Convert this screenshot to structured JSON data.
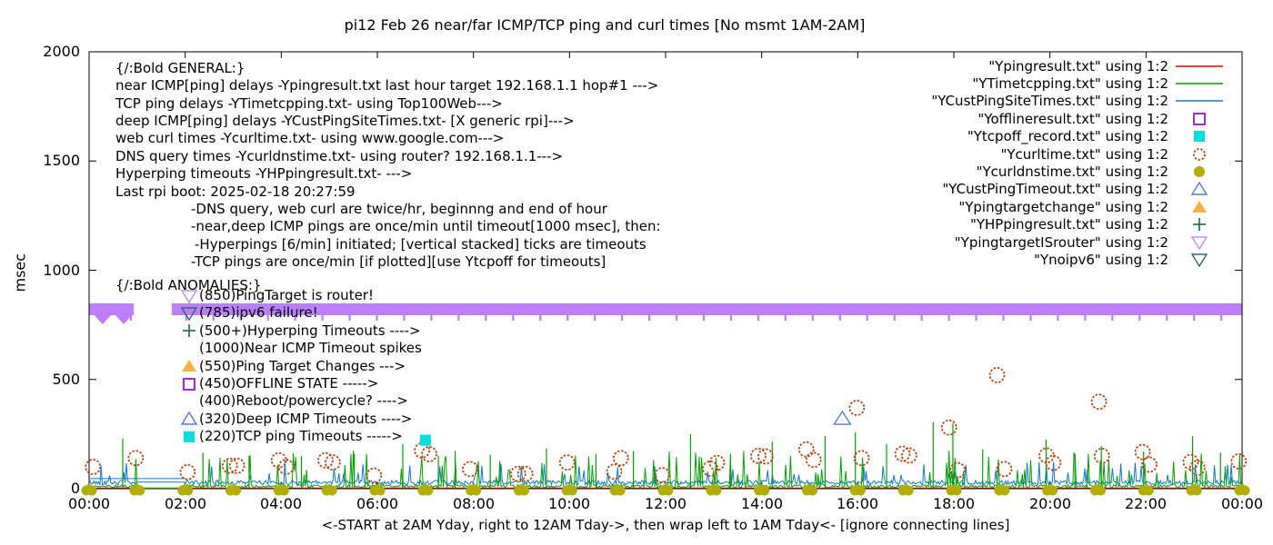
{
  "title": "pi12 Feb 26  near/far ICMP/TCP ping and curl times [No msmt 1AM-2AM]",
  "y_axis": {
    "label": "msec",
    "ticks": [
      0,
      500,
      1000,
      1500,
      2000
    ],
    "max": 2000
  },
  "x_axis": {
    "ticks": [
      {
        "label": "00:00",
        "hour": 0
      },
      {
        "label": "02:00",
        "hour": 2
      },
      {
        "label": "04:00",
        "hour": 4
      },
      {
        "label": "06:00",
        "hour": 6
      },
      {
        "label": "08:00",
        "hour": 8
      },
      {
        "label": "10:00",
        "hour": 10
      },
      {
        "label": "12:00",
        "hour": 12
      },
      {
        "label": "14:00",
        "hour": 14
      },
      {
        "label": "16:00",
        "hour": 16
      },
      {
        "label": "18:00",
        "hour": 18
      },
      {
        "label": "20:00",
        "hour": 20
      },
      {
        "label": "22:00",
        "hour": 22
      },
      {
        "label": "00:00",
        "hour": 24
      }
    ],
    "label": "<-START at 2AM Yday, right to 12AM Tday->, then wrap left to 1AM Tday<- [ignore connecting lines]"
  },
  "legend": [
    {
      "label": "\"Ypingresult.txt\" using 1:2",
      "marker": "line",
      "color": "#e60000"
    },
    {
      "label": "\"YTimetcpping.txt\" using 1:2",
      "marker": "line",
      "color": "#00a400"
    },
    {
      "label": "\"YCustPingSiteTimes.txt\" using 1:2",
      "marker": "line",
      "color": "#0b7ad1"
    },
    {
      "label": "\"Yofflineresult.txt\" using 1:2",
      "marker": "square-open",
      "color": "#a428e8"
    },
    {
      "label": "\"Ytcpoff_record.txt\" using 1:2",
      "marker": "square-filled",
      "color": "#00e0e0"
    },
    {
      "label": "\"Ycurltime.txt\" using 1:2",
      "marker": "circle-open",
      "color": "#b8460e"
    },
    {
      "label": "\"Ycurldnstime.txt\" using 1:2",
      "marker": "dot-filled",
      "color": "#b3ad00"
    },
    {
      "label": "\"YCustPingTimeout.txt\" using 1:2",
      "marker": "tri-up-open",
      "color": "#527fd0"
    },
    {
      "label": "\"Ypingtargetchange\" using 1:2",
      "marker": "tri-up-filled",
      "color": "#f7b239"
    },
    {
      "label": "\"YHPpingresult.txt\" using 1:2",
      "marker": "plus",
      "color": "#166b40"
    },
    {
      "label": "\"YpingtargetISrouter\" using 1:2",
      "marker": "tri-down-open",
      "color": "#c08ef0"
    },
    {
      "label": "\"Ynoipv6\" using 1:2",
      "marker": "tri-down-open",
      "color": "#2e617f"
    }
  ],
  "general_block": {
    "lines": [
      {
        "indent": 0,
        "text": "{/:Bold GENERAL:}"
      },
      {
        "indent": 0,
        "text": "near ICMP[ping] delays -Ypingresult.txt last hour target 192.168.1.1 hop#1 --->"
      },
      {
        "indent": 0,
        "text": "TCP ping delays -YTimetcpping.txt- using Top100Web--->"
      },
      {
        "indent": 0,
        "text": "deep ICMP[ping] delays -YCustPingSiteTimes.txt- [X generic rpi]--->"
      },
      {
        "indent": 0,
        "text": "web curl times -Ycurltime.txt- using www.google.com--->"
      },
      {
        "indent": 0,
        "text": "DNS query times -Ycurldnstime.txt- using router? 192.168.1.1--->"
      },
      {
        "indent": 0,
        "text": "Hyperping timeouts -YHPpingresult.txt- --->"
      },
      {
        "indent": 0,
        "text": "Last rpi boot: 2025-02-18 20:27:59"
      },
      {
        "indent": 1,
        "text": "-DNS query, web curl are twice/hr, beginnng and end of hour"
      },
      {
        "indent": 1,
        "text": "-near,deep ICMP pings are once/min until timeout[1000 msec], then:"
      },
      {
        "indent": 2,
        "text": "-Hyperpings [6/min] initiated; [vertical stacked] ticks are timeouts"
      },
      {
        "indent": 1,
        "text": "-TCP pings are once/min [if plotted][use Ytcpoff for timeouts]"
      }
    ]
  },
  "anomalies_block": {
    "header": "{/:Bold ANOMALIES:}",
    "lines": [
      {
        "marker": "tri-down-open",
        "color": "#c08ef0",
        "text": "(850)PingTarget is router!"
      },
      {
        "marker": "tri-down-open",
        "color": "#2e617f",
        "text": "(785)ipv6 failure!"
      },
      {
        "marker": "plus",
        "color": "#166b40",
        "text": "(500+)Hyperping Timeouts ---->"
      },
      {
        "marker": null,
        "color": null,
        "text": "(1000)Near ICMP Timeout spikes"
      },
      {
        "marker": "tri-up-filled",
        "color": "#f7b239",
        "text": "(550)Ping Target Changes --->"
      },
      {
        "marker": "square-open",
        "color": "#a428e8",
        "text": "(450)OFFLINE STATE ----->"
      },
      {
        "marker": null,
        "color": null,
        "text": "(400)Reboot/powercycle? ---->"
      },
      {
        "marker": "tri-up-open",
        "color": "#527fd0",
        "text": "(320)Deep ICMP Timeouts ---->"
      },
      {
        "marker": "square-filled",
        "color": "#00e0e0",
        "text": "(220)TCP ping Timeouts ----->"
      }
    ]
  },
  "chart_data": {
    "type": "line",
    "x_range_hours": [
      0,
      24
    ],
    "y_range_msec": [
      0,
      2000
    ],
    "grid": false,
    "legend_position": "top-right-inside",
    "no_measurement_gap_hours": [
      1,
      2
    ],
    "rng_seed": 42,
    "series": [
      {
        "name": "Ypingresult.txt",
        "style": "line",
        "color": "#e60000",
        "baseline_msec": 3,
        "desc": "near ICMP ping to router, flat ~3 msec along the x-axis"
      },
      {
        "name": "YTimetcpping.txt",
        "style": "noisy-line",
        "color": "#00a400",
        "baseline_msec": [
          4,
          18
        ],
        "spike_chance": 0.1,
        "spike_msec": [
          40,
          160
        ],
        "gap_value_msec": 2
      },
      {
        "name": "YCustPingSiteTimes.txt",
        "style": "noisy-line",
        "color": "#0b7ad1",
        "baseline_msec": [
          18,
          38
        ],
        "spike_chance": 0.08,
        "spike_msec": [
          30,
          100
        ],
        "gap_value_msec": 30,
        "wrap_line_msec": 46,
        "wrap_line_hours": [
          0,
          2
        ]
      },
      {
        "name": "Ycurltime.txt",
        "style": "circle-open",
        "color": "#b8460e",
        "points": [
          [
            0.08,
            100
          ],
          [
            0.97,
            140
          ],
          [
            2.05,
            76
          ],
          [
            2.93,
            105
          ],
          [
            3.08,
            105
          ],
          [
            3.95,
            130
          ],
          [
            4.1,
            100
          ],
          [
            4.92,
            130
          ],
          [
            5.07,
            120
          ],
          [
            5.93,
            60
          ],
          [
            6.93,
            175
          ],
          [
            7.08,
            158
          ],
          [
            7.93,
            90
          ],
          [
            8.93,
            68
          ],
          [
            9.08,
            68
          ],
          [
            9.95,
            120
          ],
          [
            10.93,
            78
          ],
          [
            11.07,
            140
          ],
          [
            11.93,
            62
          ],
          [
            12.93,
            92
          ],
          [
            13.07,
            118
          ],
          [
            13.93,
            150
          ],
          [
            14.08,
            148
          ],
          [
            14.93,
            180
          ],
          [
            15.08,
            132
          ],
          [
            15.98,
            370
          ],
          [
            16.08,
            140
          ],
          [
            16.93,
            160
          ],
          [
            17.07,
            152
          ],
          [
            17.9,
            280
          ],
          [
            18.08,
            85
          ],
          [
            18.9,
            520
          ],
          [
            19.05,
            90
          ],
          [
            19.93,
            152
          ],
          [
            20.07,
            118
          ],
          [
            21.02,
            398
          ],
          [
            21.08,
            150
          ],
          [
            21.93,
            168
          ],
          [
            22.07,
            110
          ],
          [
            22.93,
            122
          ],
          [
            23.07,
            95
          ],
          [
            23.93,
            125
          ]
        ]
      },
      {
        "name": "Ycurldnstime.txt",
        "style": "dot-filled",
        "color": "#b3ad00",
        "points_hourly_at_msec": 0,
        "hours": [
          0,
          1,
          2,
          3,
          4,
          5,
          6,
          7,
          8,
          9,
          10,
          11,
          12,
          13,
          14,
          15,
          16,
          17,
          18,
          19,
          20,
          21,
          22,
          23,
          24
        ]
      },
      {
        "name": "Ytcpoff_record.txt",
        "style": "square-filled",
        "color": "#00e0e0",
        "points": [
          [
            7.0,
            222
          ]
        ]
      },
      {
        "name": "YCustPingTimeout.txt",
        "style": "tri-up-open",
        "color": "#527fd0",
        "points": [
          [
            15.68,
            320
          ]
        ]
      },
      {
        "name": "Ypingtargetchange",
        "style": "tri-up-filled",
        "color": "#f7b239",
        "points": []
      },
      {
        "name": "Yofflineresult.txt",
        "style": "square-open",
        "color": "#a428e8",
        "points": []
      },
      {
        "name": "YHPpingresult.txt",
        "style": "plus",
        "color": "#166b40",
        "points": []
      },
      {
        "name": "YpingtargetISrouter",
        "style": "band",
        "color": "#bd7efc",
        "y_msec": 850,
        "segments_hours": [
          [
            0,
            0.93
          ],
          [
            1.72,
            24
          ]
        ]
      },
      {
        "name": "Ynoipv6",
        "style": "tick-fringe",
        "color": "#bd7efc",
        "y_msec": 785,
        "segments_hours": [
          [
            0,
            0.93
          ],
          [
            1.72,
            24
          ]
        ],
        "spacing_hours": 0.567
      }
    ],
    "green_spikes": [
      [
        0.7,
        230
      ],
      [
        2.37,
        165
      ],
      [
        3.33,
        150
      ],
      [
        4.42,
        150
      ],
      [
        5.52,
        160
      ],
      [
        6.53,
        205
      ],
      [
        7.27,
        150
      ],
      [
        7.62,
        172
      ],
      [
        8.35,
        155
      ],
      [
        9.52,
        185
      ],
      [
        10.55,
        160
      ],
      [
        11.33,
        172
      ],
      [
        12.52,
        250
      ],
      [
        13.35,
        160
      ],
      [
        14.22,
        215
      ],
      [
        15.32,
        240
      ],
      [
        15.95,
        258
      ],
      [
        16.6,
        205
      ],
      [
        17.57,
        305
      ],
      [
        17.98,
        300
      ],
      [
        18.6,
        180
      ],
      [
        19.92,
        225
      ],
      [
        20.52,
        160
      ],
      [
        21.07,
        195
      ],
      [
        21.95,
        170
      ],
      [
        22.97,
        240
      ],
      [
        23.55,
        165
      ]
    ]
  }
}
